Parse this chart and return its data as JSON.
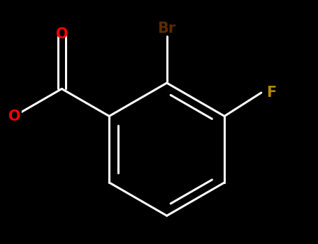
{
  "background_color": "#000000",
  "bond_color": "#ffffff",
  "bond_width": 2.2,
  "label_Br": {
    "text": "Br",
    "color": "#5C2A00",
    "fontsize": 15,
    "fontweight": "bold"
  },
  "label_F": {
    "text": "F",
    "color": "#B8860B",
    "fontsize": 15,
    "fontweight": "bold"
  },
  "label_O_carbonyl": {
    "text": "O",
    "color": "#FF0000",
    "fontsize": 15,
    "fontweight": "bold"
  },
  "label_O_ester": {
    "text": "O",
    "color": "#FF0000",
    "fontsize": 15,
    "fontweight": "bold"
  }
}
